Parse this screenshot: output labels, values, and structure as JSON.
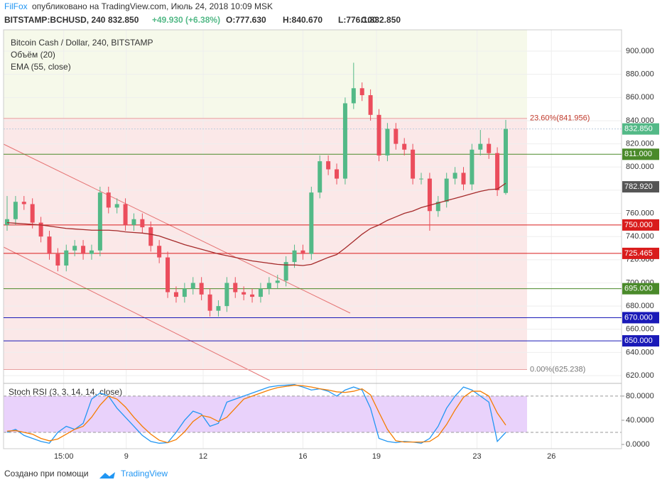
{
  "header": {
    "publisher": "FilFox",
    "published": "опубликовано на TradingView.com, Июль 24, 2018 10:09 MSK",
    "symbol": "BITSTAMP:BCHUSD, 240",
    "last": "832.850",
    "change": "+49.930 (+6.38%)",
    "open": "O:777.630",
    "high": "H:840.670",
    "low": "L:776.100",
    "close": "C:832.850"
  },
  "legend": {
    "title": "Bitcoin Cash / Dollar, 240, BITSTAMP",
    "volume": "Объём (20)",
    "ema": "EMA (55, close)",
    "stoch": "Stoch RSI (3, 3, 14, 14, close)"
  },
  "footer": {
    "text": "Создано при помощи",
    "brand": "TradingView"
  },
  "chart_data": {
    "type": "candlestick",
    "ylim": [
      613.3,
      918.4
    ],
    "yticks": [
      {
        "value": 900,
        "label": "900.000"
      },
      {
        "value": 880,
        "label": "880.000"
      },
      {
        "value": 860,
        "label": "860.000"
      },
      {
        "value": 840,
        "label": "840.000"
      },
      {
        "value": 820,
        "label": "820.000"
      },
      {
        "value": 800,
        "label": "800.000"
      },
      {
        "value": 780,
        "label": "780.000"
      },
      {
        "value": 760,
        "label": "760.000"
      },
      {
        "value": 740,
        "label": "740.000"
      },
      {
        "value": 720,
        "label": "720.000"
      },
      {
        "value": 700,
        "label": "700.000"
      },
      {
        "value": 680,
        "label": "680.000"
      },
      {
        "value": 660,
        "label": "660.000"
      },
      {
        "value": 640,
        "label": "640.000"
      },
      {
        "value": 620,
        "label": "620.000"
      }
    ],
    "xlim": [
      -0.42,
      72.7
    ],
    "xticks": [
      {
        "value": 6.7,
        "label": "15:00"
      },
      {
        "value": 14.1,
        "label": "9"
      },
      {
        "value": 23.2,
        "label": "12"
      },
      {
        "value": 35,
        "label": "16"
      },
      {
        "value": 43.7,
        "label": "19"
      },
      {
        "value": 55.6,
        "label": "23"
      },
      {
        "value": 64.4,
        "label": "26"
      }
    ],
    "up_color": "#53b987",
    "down_color": "#eb4d5c",
    "ohlc": [
      [
        750,
        775,
        745,
        755
      ],
      [
        755,
        775,
        750,
        770
      ],
      [
        770,
        775,
        763,
        768
      ],
      [
        768,
        773,
        747,
        752
      ],
      [
        752,
        757,
        735,
        740
      ],
      [
        740,
        745,
        720,
        725
      ],
      [
        725,
        730,
        710,
        715
      ],
      [
        715,
        733,
        710,
        728
      ],
      [
        728,
        737,
        723,
        732
      ],
      [
        732,
        737,
        720,
        725
      ],
      [
        725,
        733,
        720,
        728
      ],
      [
        728,
        783,
        723,
        778
      ],
      [
        778,
        783,
        760,
        765
      ],
      [
        765,
        773,
        760,
        768
      ],
      [
        768,
        773,
        745,
        750
      ],
      [
        750,
        760,
        745,
        755
      ],
      [
        755,
        760,
        743,
        748
      ],
      [
        748,
        753,
        727,
        732
      ],
      [
        732,
        737,
        717,
        722
      ],
      [
        722,
        727,
        687,
        692
      ],
      [
        692,
        697,
        683,
        688
      ],
      [
        688,
        700,
        683,
        695
      ],
      [
        695,
        705,
        690,
        700
      ],
      [
        700,
        705,
        685,
        690
      ],
      [
        690,
        695,
        671,
        676
      ],
      [
        676,
        685,
        671,
        680
      ],
      [
        680,
        705,
        675,
        700
      ],
      [
        700,
        705,
        687,
        692
      ],
      [
        692,
        697,
        685,
        690
      ],
      [
        690,
        695,
        683,
        688
      ],
      [
        688,
        700,
        683,
        695
      ],
      [
        695,
        705,
        690,
        700
      ],
      [
        700,
        707,
        695,
        702
      ],
      [
        702,
        723,
        697,
        718
      ],
      [
        718,
        733,
        713,
        728
      ],
      [
        728,
        733,
        720,
        725
      ],
      [
        725,
        783,
        720,
        778
      ],
      [
        778,
        810,
        773,
        805
      ],
      [
        805,
        810,
        793,
        798
      ],
      [
        798,
        803,
        785,
        790
      ],
      [
        790,
        860,
        785,
        855
      ],
      [
        855,
        890,
        850,
        868
      ],
      [
        868,
        873,
        857,
        862
      ],
      [
        862,
        867,
        840,
        845
      ],
      [
        845,
        850,
        805,
        810
      ],
      [
        810,
        838,
        805,
        833
      ],
      [
        833,
        838,
        815,
        820
      ],
      [
        820,
        825,
        810,
        815
      ],
      [
        815,
        820,
        785,
        790
      ],
      [
        790,
        795,
        785,
        790
      ],
      [
        790,
        795,
        745,
        762
      ],
      [
        762,
        775,
        757,
        770
      ],
      [
        770,
        795,
        765,
        790
      ],
      [
        790,
        800,
        785,
        795
      ],
      [
        795,
        800,
        780,
        785
      ],
      [
        785,
        820,
        780,
        815
      ],
      [
        815,
        832,
        810,
        820
      ],
      [
        820,
        825,
        807,
        812
      ],
      [
        812,
        817,
        775,
        780
      ],
      [
        777.63,
        840.67,
        776.1,
        832.85
      ]
    ],
    "ema": [
      752,
      751.5,
      751,
      750.5,
      750,
      749,
      748,
      747,
      746.5,
      746,
      745.5,
      745.5,
      745.5,
      745,
      744,
      743.5,
      743,
      742,
      740.5,
      738,
      735.5,
      733,
      731,
      729,
      727,
      725,
      723.5,
      722,
      720.5,
      719,
      718,
      717,
      716,
      715.5,
      715.5,
      715,
      716,
      719,
      722,
      724.5,
      730,
      736,
      742,
      747,
      750,
      754,
      757,
      760,
      762,
      765,
      767,
      769,
      771,
      773,
      775,
      777,
      779,
      780.5,
      781,
      786
    ],
    "levels": [
      {
        "value": 811,
        "label": "811.000",
        "color": "#4a8a2a"
      },
      {
        "value": 750,
        "label": "750.000",
        "color": "#d91c1c"
      },
      {
        "value": 725.465,
        "label": "725.465",
        "color": "#d91c1c"
      },
      {
        "value": 695,
        "label": "695.000",
        "color": "#4a8a2a"
      },
      {
        "value": 670,
        "label": "670.000",
        "color": "#1a1ab8"
      },
      {
        "value": 650,
        "label": "650.000",
        "color": "#1a1ab8"
      }
    ],
    "fib": [
      {
        "value": 841.956,
        "label": "23.60%(841.956)"
      },
      {
        "value": 625.238,
        "label": "0.00%(625.238)"
      }
    ],
    "price_marker": {
      "value": 832.85,
      "label": "832.850",
      "color": "#53b987"
    },
    "ema_marker": {
      "value": 782.92,
      "label": "782.920",
      "color": "#555555"
    },
    "stoch": {
      "ylim": [
        -7,
        101
      ],
      "yticks": [
        {
          "value": 80,
          "label": "80.0000"
        },
        {
          "value": 40,
          "label": "40.0000"
        },
        {
          "value": 0,
          "label": "0.0000"
        }
      ],
      "band": [
        20,
        80
      ],
      "k": [
        20,
        25,
        15,
        10,
        5,
        2,
        20,
        30,
        25,
        35,
        75,
        85,
        80,
        60,
        45,
        30,
        15,
        5,
        2,
        3,
        20,
        40,
        55,
        50,
        30,
        35,
        70,
        75,
        80,
        85,
        90,
        95,
        97,
        98,
        99,
        95,
        90,
        92,
        88,
        80,
        90,
        95,
        90,
        60,
        10,
        5,
        3,
        5,
        4,
        2,
        10,
        30,
        60,
        80,
        95,
        90,
        80,
        70,
        5,
        20
      ],
      "d": [
        22,
        23,
        20,
        17,
        10,
        6,
        9,
        17,
        25,
        30,
        45,
        65,
        80,
        75,
        62,
        45,
        30,
        17,
        7,
        3,
        8,
        21,
        38,
        48,
        45,
        38,
        45,
        60,
        75,
        80,
        85,
        90,
        94,
        96,
        98,
        97,
        95,
        92,
        90,
        87,
        86,
        88,
        92,
        82,
        53,
        25,
        6,
        4,
        4,
        4,
        5,
        14,
        33,
        57,
        78,
        88,
        88,
        80,
        52,
        32
      ]
    }
  }
}
